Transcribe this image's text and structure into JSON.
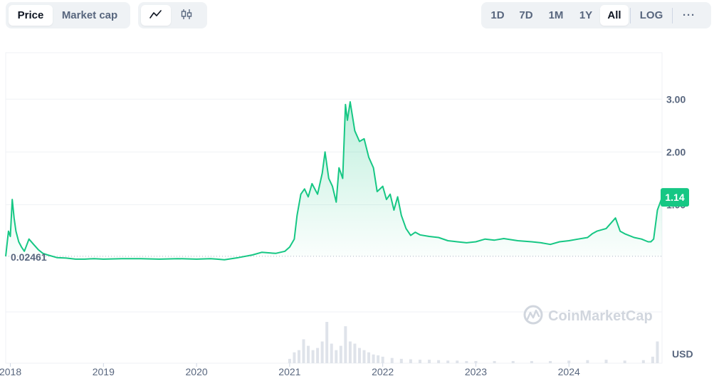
{
  "toolbar": {
    "metric_tabs": [
      {
        "label": "Price",
        "active": true
      },
      {
        "label": "Market cap",
        "active": false
      }
    ],
    "chart_types": [
      {
        "icon": "line-chart-icon",
        "active": true
      },
      {
        "icon": "candlestick-icon",
        "active": false
      }
    ],
    "ranges": [
      {
        "label": "1D",
        "active": false
      },
      {
        "label": "7D",
        "active": false
      },
      {
        "label": "1M",
        "active": false
      },
      {
        "label": "1Y",
        "active": false
      },
      {
        "label": "All",
        "active": true
      }
    ],
    "log_label": "LOG",
    "more_label": "···"
  },
  "watermark": "CoinMarketCap",
  "colors": {
    "line": "#16c784",
    "line_below_start": "#8a919e",
    "label_bg": "#16c784",
    "grid": "#eff2f5"
  },
  "chart_data": {
    "type": "area",
    "currency_label": "USD",
    "start_price_label": "0.02461",
    "current_price_label": "1.14",
    "y_ticks": [
      {
        "label": "3.00",
        "value": 3.0
      },
      {
        "label": "2.00",
        "value": 2.0
      },
      {
        "label": "1.00",
        "value": 1.0
      }
    ],
    "ylim": [
      -2.0,
      3.88
    ],
    "x_ticks": [
      "2018",
      "2019",
      "2020",
      "2021",
      "2022",
      "2023",
      "2024"
    ],
    "x_tick_values": [
      2018.0,
      2019.0,
      2020.0,
      2021.0,
      2022.0,
      2023.0,
      2024.0
    ],
    "xlim": [
      2017.95,
      2025.0
    ],
    "series": [
      {
        "x": [
          2017.95,
          2017.98,
          2018.0,
          2018.02,
          2018.04,
          2018.06,
          2018.09,
          2018.12,
          2018.15,
          2018.2,
          2018.25,
          2018.3,
          2018.35,
          2018.4,
          2018.5,
          2018.6,
          2018.7,
          2018.8,
          2018.9,
          2019.0,
          2019.2,
          2019.4,
          2019.6,
          2019.8,
          2020.0,
          2020.15,
          2020.22,
          2020.3,
          2020.45,
          2020.6,
          2020.7,
          2020.85,
          2020.95,
          2021.0,
          2021.05,
          2021.08,
          2021.12,
          2021.16,
          2021.2,
          2021.24,
          2021.3,
          2021.35,
          2021.38,
          2021.42,
          2021.46,
          2021.5,
          2021.53,
          2021.57,
          2021.6,
          2021.62,
          2021.65,
          2021.7,
          2021.75,
          2021.8,
          2021.85,
          2021.9,
          2021.94,
          2022.0,
          2022.04,
          2022.08,
          2022.12,
          2022.16,
          2022.2,
          2022.25,
          2022.3,
          2022.35,
          2022.4,
          2022.5,
          2022.6,
          2022.7,
          2022.8,
          2022.9,
          2023.0,
          2023.1,
          2023.2,
          2023.3,
          2023.45,
          2023.6,
          2023.7,
          2023.8,
          2023.9,
          2024.0,
          2024.1,
          2024.2,
          2024.25,
          2024.3,
          2024.4,
          2024.5,
          2024.55,
          2024.6,
          2024.7,
          2024.78,
          2024.85,
          2024.88,
          2024.91,
          2024.95,
          2025.0
        ],
        "values": [
          0.02461,
          0.5,
          0.4,
          1.1,
          0.75,
          0.5,
          0.3,
          0.2,
          0.12,
          0.35,
          0.25,
          0.15,
          0.08,
          0.05,
          0.0,
          -0.01,
          -0.03,
          -0.03,
          -0.02,
          -0.03,
          -0.02,
          -0.02,
          -0.03,
          -0.02,
          -0.03,
          -0.02,
          -0.03,
          -0.04,
          0.0,
          0.05,
          0.1,
          0.08,
          0.12,
          0.2,
          0.35,
          0.8,
          1.2,
          1.3,
          1.15,
          1.4,
          1.2,
          1.6,
          2.0,
          1.5,
          1.35,
          1.05,
          1.7,
          1.5,
          2.9,
          2.6,
          2.95,
          2.4,
          2.2,
          2.25,
          1.9,
          1.7,
          1.25,
          1.35,
          1.1,
          1.2,
          0.9,
          1.15,
          0.8,
          0.55,
          0.42,
          0.48,
          0.43,
          0.4,
          0.38,
          0.32,
          0.3,
          0.28,
          0.3,
          0.35,
          0.33,
          0.36,
          0.32,
          0.3,
          0.28,
          0.25,
          0.3,
          0.32,
          0.35,
          0.38,
          0.45,
          0.5,
          0.55,
          0.75,
          0.5,
          0.45,
          0.38,
          0.35,
          0.3,
          0.3,
          0.35,
          0.9,
          1.14
        ]
      }
    ],
    "volume": {
      "x": [
        2021.0,
        2021.05,
        2021.1,
        2021.15,
        2021.2,
        2021.25,
        2021.3,
        2021.35,
        2021.4,
        2021.45,
        2021.5,
        2021.55,
        2021.6,
        2021.65,
        2021.7,
        2021.75,
        2021.8,
        2021.85,
        2021.9,
        2021.95,
        2022.0,
        2022.1,
        2022.2,
        2022.3,
        2022.4,
        2022.5,
        2022.6,
        2022.7,
        2022.8,
        2022.9,
        2023.0,
        2023.2,
        2023.4,
        2023.6,
        2023.8,
        2024.0,
        2024.2,
        2024.4,
        2024.6,
        2024.8,
        2024.9,
        2024.95
      ],
      "values": [
        0.1,
        0.25,
        0.3,
        0.55,
        0.4,
        0.3,
        0.35,
        0.5,
        0.95,
        0.45,
        0.3,
        0.4,
        0.85,
        0.5,
        0.45,
        0.35,
        0.3,
        0.25,
        0.2,
        0.18,
        0.15,
        0.12,
        0.1,
        0.09,
        0.08,
        0.08,
        0.07,
        0.06,
        0.06,
        0.05,
        0.05,
        0.05,
        0.05,
        0.05,
        0.05,
        0.06,
        0.07,
        0.08,
        0.06,
        0.07,
        0.15,
        0.5
      ]
    }
  }
}
